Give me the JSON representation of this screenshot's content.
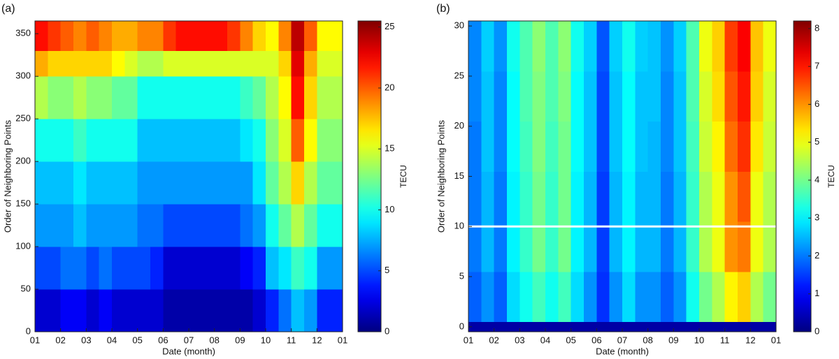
{
  "chart_data": [
    {
      "type": "heatmap",
      "panel_label": "(a)",
      "xlabel": "Date (month)",
      "ylabel": "Order of Neighboring Points",
      "colorbar_label": "TECU",
      "xlim": [
        0,
        12
      ],
      "ylim": [
        0,
        365
      ],
      "xticks": [
        {
          "value": 0,
          "label": "01"
        },
        {
          "value": 1,
          "label": "02"
        },
        {
          "value": 2,
          "label": "03"
        },
        {
          "value": 3,
          "label": "04"
        },
        {
          "value": 4,
          "label": "05"
        },
        {
          "value": 5,
          "label": "06"
        },
        {
          "value": 6,
          "label": "07"
        },
        {
          "value": 7,
          "label": "08"
        },
        {
          "value": 8,
          "label": "09"
        },
        {
          "value": 9,
          "label": "10"
        },
        {
          "value": 10,
          "label": "11"
        },
        {
          "value": 11,
          "label": "12"
        },
        {
          "value": 12,
          "label": "01"
        }
      ],
      "yticks": [
        0,
        50,
        100,
        150,
        200,
        250,
        300,
        350
      ],
      "zlim": [
        0,
        25.5
      ],
      "zticks": [
        0,
        5,
        10,
        15,
        20,
        25
      ],
      "x_edges": [
        0,
        0.5,
        1,
        1.5,
        2,
        2.5,
        3,
        3.5,
        4,
        4.5,
        5,
        5.5,
        6,
        6.5,
        7,
        7.5,
        8,
        8.5,
        9,
        9.5,
        10,
        10.5,
        11,
        11.5,
        12
      ],
      "y_edges": [
        0,
        50,
        100,
        150,
        200,
        250,
        300,
        330,
        365
      ],
      "z": [
        [
          2,
          2,
          3,
          3,
          2,
          3,
          2,
          2,
          2,
          2,
          1,
          1,
          1,
          1,
          1,
          1,
          1,
          2,
          4,
          6,
          8,
          7,
          4,
          4
        ],
        [
          5,
          5,
          6,
          6,
          5,
          6,
          5,
          5,
          5,
          4,
          2,
          2,
          2,
          2,
          2,
          2,
          3,
          4,
          8,
          9,
          11,
          10,
          7,
          7
        ],
        [
          7,
          7,
          7,
          8,
          7,
          7,
          7,
          7,
          6,
          6,
          5,
          5,
          5,
          5,
          5,
          5,
          6,
          7,
          10,
          12,
          14,
          12,
          10,
          10
        ],
        [
          8,
          8,
          8,
          9,
          8,
          8,
          8,
          8,
          7,
          7,
          7,
          7,
          7,
          7,
          7,
          7,
          7,
          9,
          12,
          14,
          17,
          14,
          12,
          12
        ],
        [
          10,
          10,
          10,
          11,
          10,
          10,
          10,
          10,
          8,
          8,
          8,
          8,
          8,
          8,
          8,
          8,
          9,
          10,
          13,
          15,
          20,
          16,
          13,
          13
        ],
        [
          14,
          13,
          13,
          14,
          13,
          13,
          12,
          12,
          10,
          10,
          10,
          10,
          10,
          10,
          10,
          10,
          11,
          12,
          14,
          16,
          22,
          17,
          14,
          14
        ],
        [
          18,
          17,
          17,
          17,
          17,
          17,
          16,
          15,
          14,
          14,
          15,
          15,
          15,
          15,
          15,
          15,
          15,
          15,
          15,
          17,
          23,
          18,
          15,
          15
        ],
        [
          22,
          21,
          20,
          19,
          20,
          19,
          18,
          18,
          19,
          19,
          21,
          22,
          22,
          22,
          22,
          21,
          19,
          17,
          16,
          19,
          24,
          20,
          16,
          16
        ]
      ]
    },
    {
      "type": "heatmap",
      "panel_label": "(b)",
      "xlabel": "Date (month)",
      "ylabel": "Order of Neighboring Points",
      "colorbar_label": "TECU",
      "xlim": [
        0,
        12
      ],
      "ylim": [
        -0.5,
        30.5
      ],
      "xticks": [
        {
          "value": 0,
          "label": "01"
        },
        {
          "value": 1,
          "label": "02"
        },
        {
          "value": 2,
          "label": "03"
        },
        {
          "value": 3,
          "label": "04"
        },
        {
          "value": 4,
          "label": "05"
        },
        {
          "value": 5,
          "label": "06"
        },
        {
          "value": 6,
          "label": "07"
        },
        {
          "value": 7,
          "label": "08"
        },
        {
          "value": 8,
          "label": "09"
        },
        {
          "value": 9,
          "label": "10"
        },
        {
          "value": 10,
          "label": "11"
        },
        {
          "value": 11,
          "label": "12"
        },
        {
          "value": 12,
          "label": "01"
        }
      ],
      "yticks": [
        0,
        5,
        10,
        15,
        20,
        25,
        30
      ],
      "zlim": [
        0,
        8.2
      ],
      "zticks": [
        0,
        1,
        2,
        3,
        4,
        5,
        6,
        7,
        8
      ],
      "hline": 10,
      "hline_color": "#ffffff",
      "x_edges": [
        0,
        0.5,
        1,
        1.5,
        2,
        2.5,
        3,
        3.5,
        4,
        4.5,
        5,
        5.5,
        6,
        6.5,
        7,
        7.5,
        8,
        8.5,
        9,
        9.5,
        10,
        10.5,
        11,
        11.5,
        12
      ],
      "y_edges": [
        -0.5,
        0.5,
        5.5,
        10.5,
        15.5,
        20.5,
        25.5,
        30.5
      ],
      "z": [
        [
          0.3,
          0.3,
          0.3,
          0.3,
          0.3,
          0.3,
          0.3,
          0.3,
          0.3,
          0.3,
          0.3,
          0.3,
          0.3,
          0.3,
          0.3,
          0.3,
          0.3,
          0.3,
          0.3,
          0.3,
          0.3,
          0.3,
          0.3,
          0.3
        ],
        [
          1.8,
          2.2,
          1.8,
          2.8,
          3.2,
          3.6,
          3.2,
          3.6,
          2.8,
          2.2,
          1.4,
          2.2,
          2.8,
          2.2,
          2.2,
          1.8,
          2.2,
          3.2,
          4,
          4.5,
          5.2,
          5.5,
          4.5,
          4
        ],
        [
          2,
          2.5,
          2,
          3,
          3.5,
          4,
          3.5,
          4,
          3,
          2.5,
          1.5,
          2.5,
          3,
          2.5,
          2.5,
          2,
          2.5,
          3.5,
          4.5,
          5,
          6,
          6.2,
          5,
          4.5
        ],
        [
          2,
          2.5,
          2,
          3,
          3.5,
          4,
          3.5,
          4,
          3,
          2.5,
          1.5,
          2.5,
          3,
          2.5,
          2.5,
          2,
          2.5,
          3.5,
          4.5,
          5,
          6,
          6.5,
          5,
          4.5
        ],
        [
          2,
          2.6,
          2.1,
          3.1,
          3.6,
          4.1,
          3.6,
          4,
          3.1,
          2.6,
          1.6,
          2.6,
          3.1,
          2.6,
          2.5,
          2.1,
          2.6,
          3.6,
          4.7,
          5.2,
          6.3,
          6.8,
          5.3,
          4.7
        ],
        [
          2.1,
          2.6,
          2.1,
          3.1,
          3.7,
          4.1,
          3.7,
          4.1,
          3.1,
          2.6,
          1.6,
          2.6,
          3.1,
          2.6,
          2.6,
          2.1,
          2.6,
          3.7,
          4.8,
          5.4,
          6.5,
          7,
          5.5,
          4.8
        ],
        [
          2.1,
          2.7,
          2.2,
          3.2,
          3.7,
          4.2,
          3.7,
          4.2,
          3.2,
          2.7,
          1.7,
          2.7,
          3.2,
          2.7,
          2.6,
          2.2,
          2.7,
          3.7,
          5,
          5.5,
          6.7,
          7.2,
          5.6,
          5
        ]
      ]
    }
  ]
}
